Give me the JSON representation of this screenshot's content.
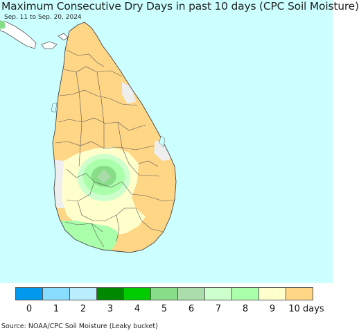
{
  "title": "Maximum Consecutive Dry Days in past 10 days (CPC Soil Moisture)",
  "subtitle": "Sep. 11 to Sep. 20, 2024",
  "source": "Source: NOAA/CPC Soil Moisture (Leaky bucket)",
  "colors": {
    "ocean": "#ccffff",
    "land_default": "#ffd586",
    "border": "#555555"
  },
  "legend": {
    "bins": [
      {
        "value": "0",
        "color": "#0099ee"
      },
      {
        "value": "1",
        "color": "#88ddff"
      },
      {
        "value": "2",
        "color": "#bbeeff"
      },
      {
        "value": "3",
        "color": "#008800"
      },
      {
        "value": "4",
        "color": "#00cc00"
      },
      {
        "value": "5",
        "color": "#88dd88"
      },
      {
        "value": "6",
        "color": "#aaddaa"
      },
      {
        "value": "7",
        "color": "#ccffcc"
      },
      {
        "value": "8",
        "color": "#aaffaa"
      },
      {
        "value": "9",
        "color": "#ffffcc"
      },
      {
        "value": "10 days",
        "color": "#ffd586"
      }
    ]
  }
}
